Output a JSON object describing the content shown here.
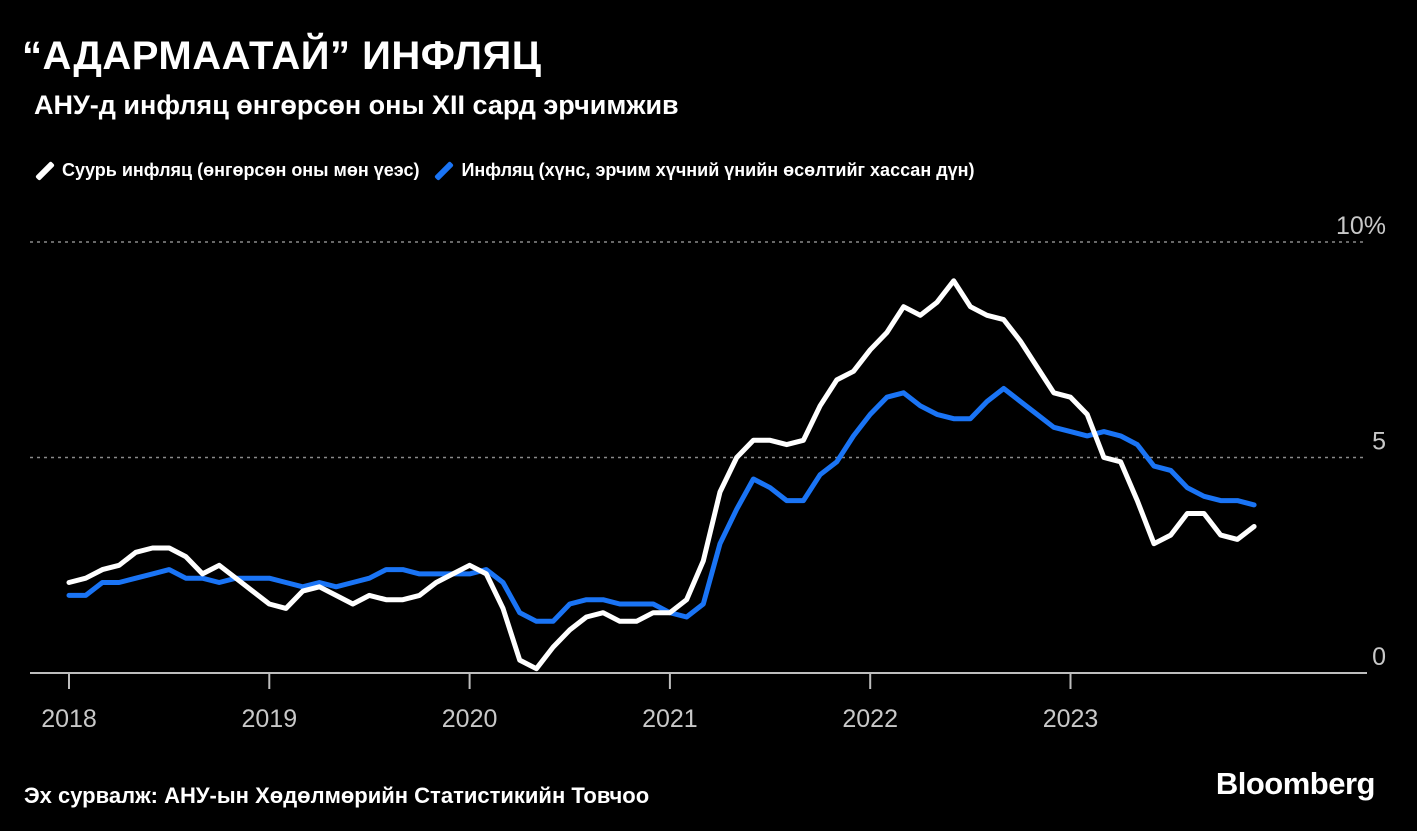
{
  "chart_data": {
    "type": "line",
    "title": "“АДАРМААТАЙ” ИНФЛЯЦ",
    "subtitle": "АНУ-д инфляц өнгөрсөн оны XII сард эрчимжив",
    "xlabel": "",
    "ylabel": "",
    "ylim": [
      0,
      10
    ],
    "y_ticks": [
      {
        "value": 10,
        "label": "10%"
      },
      {
        "value": 5,
        "label": "5"
      },
      {
        "value": 0,
        "label": "0"
      }
    ],
    "x_ticks": [
      "2018",
      "2019",
      "2020",
      "2021",
      "2022",
      "2023"
    ],
    "x_start": "2018-01",
    "x_end": "2023-12",
    "grid": true,
    "legend_placement": "top-left",
    "series": [
      {
        "name": "Суурь инфляц (өнгөрсөн оны мөн үеэс)",
        "color": "#ffffff",
        "values": [
          2.1,
          2.2,
          2.4,
          2.5,
          2.8,
          2.9,
          2.9,
          2.7,
          2.3,
          2.5,
          2.2,
          1.9,
          1.6,
          1.5,
          1.9,
          2.0,
          1.8,
          1.6,
          1.8,
          1.7,
          1.7,
          1.8,
          2.1,
          2.3,
          2.5,
          2.3,
          1.5,
          0.3,
          0.1,
          0.6,
          1.0,
          1.3,
          1.4,
          1.2,
          1.2,
          1.4,
          1.4,
          1.7,
          2.6,
          4.2,
          5.0,
          5.4,
          5.4,
          5.3,
          5.4,
          6.2,
          6.8,
          7.0,
          7.5,
          7.9,
          8.5,
          8.3,
          8.6,
          9.1,
          8.5,
          8.3,
          8.2,
          7.7,
          7.1,
          6.5,
          6.4,
          6.0,
          5.0,
          4.9,
          4.0,
          3.0,
          3.2,
          3.7,
          3.7,
          3.2,
          3.1,
          3.4
        ]
      },
      {
        "name": "Инфляц (хүнс, эрчим хүчний үнийн өсөлтийг хассан дүн)",
        "color": "#1a74f5",
        "values": [
          1.8,
          1.8,
          2.1,
          2.1,
          2.2,
          2.3,
          2.4,
          2.2,
          2.2,
          2.1,
          2.2,
          2.2,
          2.2,
          2.1,
          2.0,
          2.1,
          2.0,
          2.1,
          2.2,
          2.4,
          2.4,
          2.3,
          2.3,
          2.3,
          2.3,
          2.4,
          2.1,
          1.4,
          1.2,
          1.2,
          1.6,
          1.7,
          1.7,
          1.6,
          1.6,
          1.6,
          1.4,
          1.3,
          1.6,
          3.0,
          3.8,
          4.5,
          4.3,
          4.0,
          4.0,
          4.6,
          4.9,
          5.5,
          6.0,
          6.4,
          6.5,
          6.2,
          6.0,
          5.9,
          5.9,
          6.3,
          6.6,
          6.3,
          6.0,
          5.7,
          5.6,
          5.5,
          5.6,
          5.5,
          5.3,
          4.8,
          4.7,
          4.3,
          4.1,
          4.0,
          4.0,
          3.9
        ]
      }
    ]
  },
  "source": "Эх сурвалж: АНУ-ын Хөдөлмөрийн Статистикийн Товчоо",
  "logo": "Bloomberg"
}
